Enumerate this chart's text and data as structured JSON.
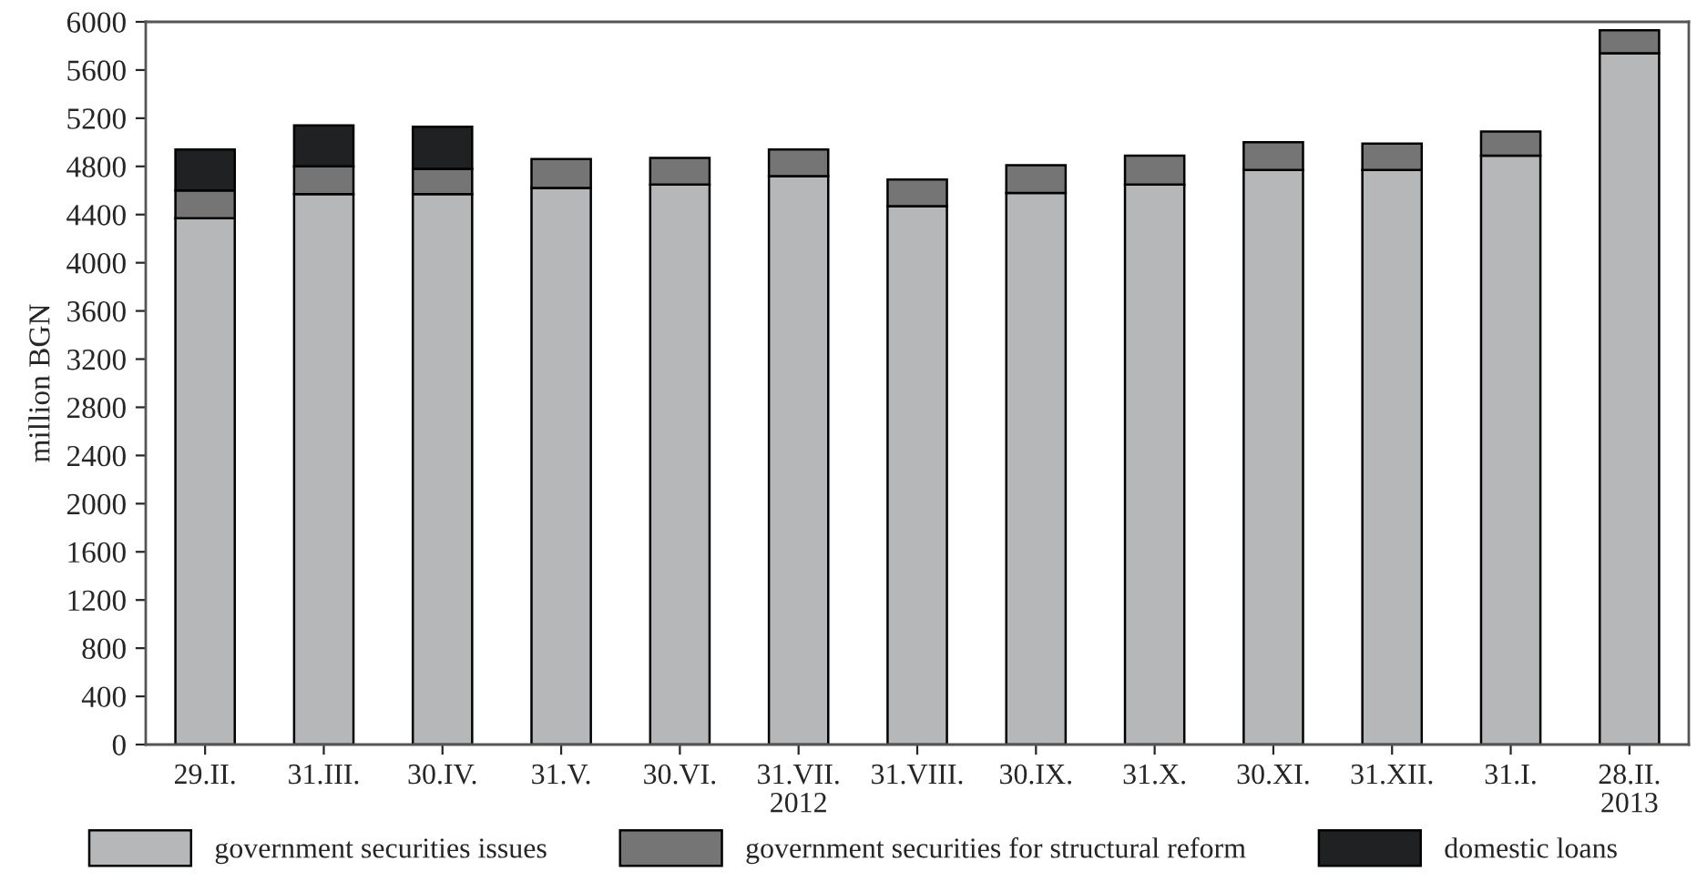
{
  "chart_data": {
    "type": "bar",
    "stacked": true,
    "ylabel": "million BGN",
    "categories": [
      "29.II.",
      "31.III.",
      "30.IV.",
      "31.V.",
      "30.VI.",
      "31.VII.\n2012",
      "31.VIII.",
      "30.IX.",
      "31.X.",
      "30.XI.",
      "31.XII.",
      "31.I.",
      "28.II.\n2013"
    ],
    "series": [
      {
        "name": "government securities issues",
        "color": "#b6b7b9",
        "values": [
          4370,
          4570,
          4570,
          4620,
          4650,
          4720,
          4470,
          4580,
          4650,
          4770,
          4770,
          4890,
          5740
        ]
      },
      {
        "name": "government securities for structural reform",
        "color": "#747574",
        "values": [
          230,
          230,
          210,
          240,
          220,
          220,
          220,
          230,
          240,
          230,
          220,
          200,
          190
        ]
      },
      {
        "name": "domestic loans",
        "color": "#1f2123",
        "values": [
          340,
          340,
          350,
          null,
          null,
          null,
          null,
          null,
          null,
          null,
          null,
          null,
          null
        ]
      }
    ],
    "ylim": [
      0,
      6000
    ],
    "yticks": [
      0,
      400,
      800,
      1200,
      1600,
      2000,
      2400,
      2800,
      3200,
      3600,
      4000,
      4400,
      4800,
      5200,
      5600,
      6000
    ],
    "grid": false,
    "legend": "bottom"
  }
}
